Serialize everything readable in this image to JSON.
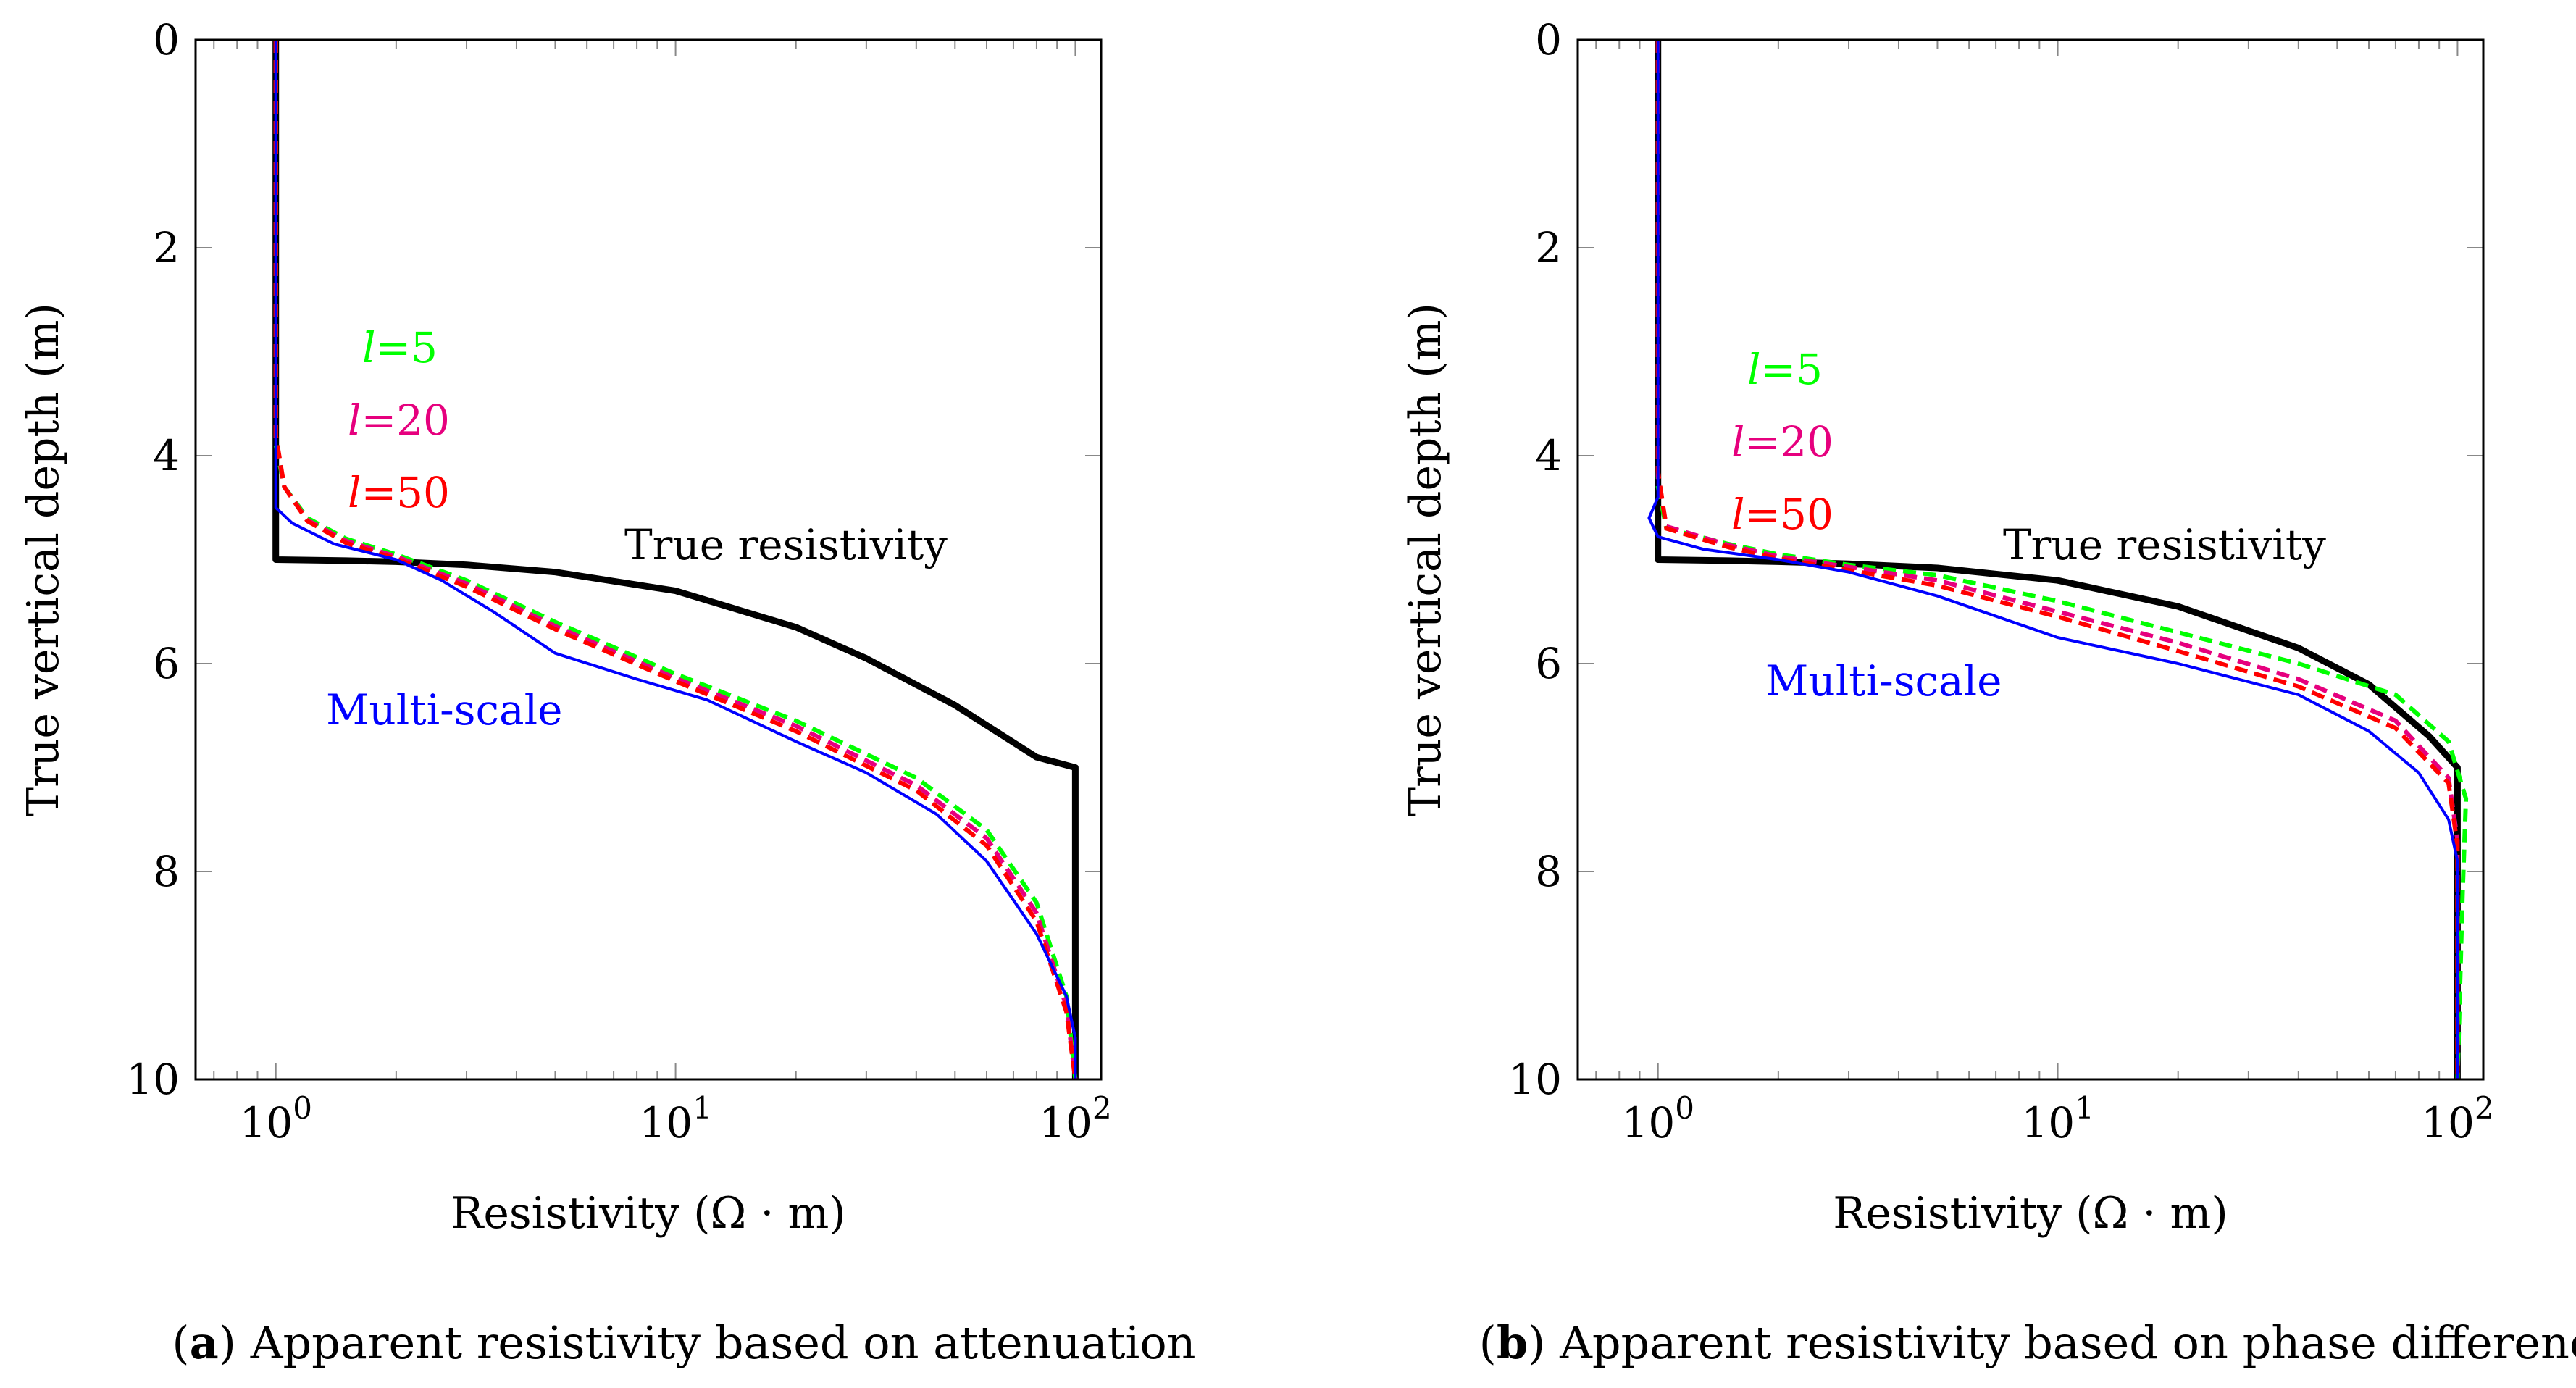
{
  "colors": {
    "true_resistivity": "#000000",
    "multi_scale": "#0000ff",
    "l5": "#00ff00",
    "l20": "#e6007e",
    "l50": "#ff0000"
  },
  "chart_data": [
    {
      "type": "line",
      "panel_label": "a",
      "caption": "Apparent resistivity based on attenuation",
      "xlabel": "Resistivity (Ω · m)",
      "ylabel": "True vertical depth (m)",
      "xscale": "log",
      "xlim": [
        0.63,
        116
      ],
      "ylim": [
        0,
        10
      ],
      "y_inverted": true,
      "xticks": [
        {
          "base": "10",
          "exp": "0"
        },
        {
          "base": "10",
          "exp": "1"
        },
        {
          "base": "10",
          "exp": "2"
        }
      ],
      "yticks": [
        "0",
        "2",
        "4",
        "6",
        "8",
        "10"
      ],
      "annotations": {
        "true": "True resistivity",
        "multi": "Multi-scale",
        "l5": "=5",
        "l20": "=20",
        "l50": "=50",
        "l_symbol": "l"
      },
      "series": [
        {
          "key": "true_resistivity",
          "style": "solid-thick",
          "x": [
            1,
            1,
            1.5,
            2,
            3,
            5,
            10,
            20,
            30,
            50,
            80,
            100,
            100,
            100
          ],
          "y": [
            0,
            5,
            5.01,
            5.02,
            5.05,
            5.12,
            5.3,
            5.65,
            5.95,
            6.4,
            6.9,
            7,
            8,
            10
          ]
        },
        {
          "key": "multi_scale",
          "style": "solid",
          "x": [
            1,
            1,
            1,
            1.1,
            1.4,
            2,
            2.6,
            3.5,
            5,
            8,
            12,
            20,
            30,
            45,
            60,
            80,
            95,
            100,
            100
          ],
          "y": [
            0,
            3,
            4.5,
            4.65,
            4.85,
            5.0,
            5.2,
            5.5,
            5.9,
            6.15,
            6.35,
            6.75,
            7.05,
            7.45,
            7.9,
            8.6,
            9.2,
            9.6,
            10
          ]
        },
        {
          "key": "l5",
          "style": "dashed",
          "x": [
            1,
            1,
            1.05,
            1.2,
            1.5,
            2,
            3,
            5,
            10,
            20,
            40,
            60,
            80,
            95,
            100
          ],
          "y": [
            0,
            3.9,
            4.3,
            4.6,
            4.8,
            4.95,
            5.2,
            5.6,
            6.1,
            6.55,
            7.1,
            7.6,
            8.3,
            9.2,
            10
          ]
        },
        {
          "key": "l20",
          "style": "dashed",
          "x": [
            1,
            1,
            1.05,
            1.2,
            1.5,
            2,
            3,
            5,
            10,
            20,
            40,
            60,
            80,
            95,
            100
          ],
          "y": [
            0,
            3.85,
            4.3,
            4.62,
            4.82,
            4.97,
            5.23,
            5.64,
            6.14,
            6.6,
            7.17,
            7.68,
            8.4,
            9.3,
            10
          ]
        },
        {
          "key": "l50",
          "style": "dashed",
          "x": [
            1,
            1,
            1.05,
            1.2,
            1.5,
            2,
            3,
            5,
            10,
            20,
            40,
            60,
            80,
            95,
            100
          ],
          "y": [
            0,
            3.8,
            4.3,
            4.63,
            4.84,
            4.99,
            5.26,
            5.67,
            6.17,
            6.65,
            7.22,
            7.75,
            8.48,
            9.35,
            10
          ]
        }
      ]
    },
    {
      "type": "line",
      "panel_label": "b",
      "caption": "Apparent resistivity based on phase difference",
      "xlabel": "Resistivity (Ω · m)",
      "ylabel": "True vertical depth (m)",
      "xscale": "log",
      "xlim": [
        0.63,
        116
      ],
      "ylim": [
        0,
        10
      ],
      "y_inverted": true,
      "xticks": [
        {
          "base": "10",
          "exp": "0"
        },
        {
          "base": "10",
          "exp": "1"
        },
        {
          "base": "10",
          "exp": "2"
        }
      ],
      "yticks": [
        "0",
        "2",
        "4",
        "6",
        "8",
        "10"
      ],
      "annotations": {
        "true": "True resistivity",
        "multi": "Multi-scale",
        "l5": "=5",
        "l20": "=20",
        "l50": "=50",
        "l_symbol": "l"
      },
      "series": [
        {
          "key": "true_resistivity",
          "style": "solid-thick",
          "x": [
            1,
            1,
            1.5,
            2,
            3,
            5,
            10,
            20,
            40,
            60,
            85,
            100,
            100,
            100
          ],
          "y": [
            0,
            5,
            5.01,
            5.02,
            5.04,
            5.08,
            5.2,
            5.45,
            5.85,
            6.2,
            6.7,
            7,
            8,
            10
          ]
        },
        {
          "key": "multi_scale",
          "style": "solid",
          "x": [
            1,
            1,
            0.95,
            1,
            1.3,
            2,
            3,
            5,
            10,
            20,
            40,
            60,
            80,
            95,
            100,
            100
          ],
          "y": [
            0,
            4.4,
            4.6,
            4.78,
            4.9,
            5.0,
            5.12,
            5.35,
            5.75,
            6.0,
            6.3,
            6.65,
            7.05,
            7.5,
            7.9,
            10
          ]
        },
        {
          "key": "l5",
          "style": "dashed",
          "x": [
            1,
            1,
            1.05,
            1.5,
            2,
            3,
            5,
            10,
            20,
            40,
            70,
            95,
            105,
            103,
            100
          ],
          "y": [
            0,
            4.3,
            4.7,
            4.85,
            4.95,
            5.05,
            5.15,
            5.4,
            5.7,
            6.0,
            6.3,
            6.75,
            7.3,
            8.2,
            10
          ]
        },
        {
          "key": "l20",
          "style": "dashed",
          "x": [
            1,
            1,
            1.05,
            1.5,
            2,
            3,
            5,
            10,
            20,
            40,
            70,
            95,
            100,
            100
          ],
          "y": [
            0,
            4.2,
            4.68,
            4.86,
            4.97,
            5.07,
            5.2,
            5.5,
            5.8,
            6.15,
            6.55,
            7.1,
            7.7,
            10
          ]
        },
        {
          "key": "l50",
          "style": "dashed",
          "x": [
            1,
            1,
            1.05,
            1.5,
            2,
            3,
            5,
            10,
            20,
            40,
            70,
            95,
            100,
            100
          ],
          "y": [
            0,
            4.15,
            4.7,
            4.88,
            4.99,
            5.1,
            5.25,
            5.55,
            5.88,
            6.22,
            6.62,
            7.15,
            7.75,
            10
          ]
        }
      ]
    }
  ]
}
